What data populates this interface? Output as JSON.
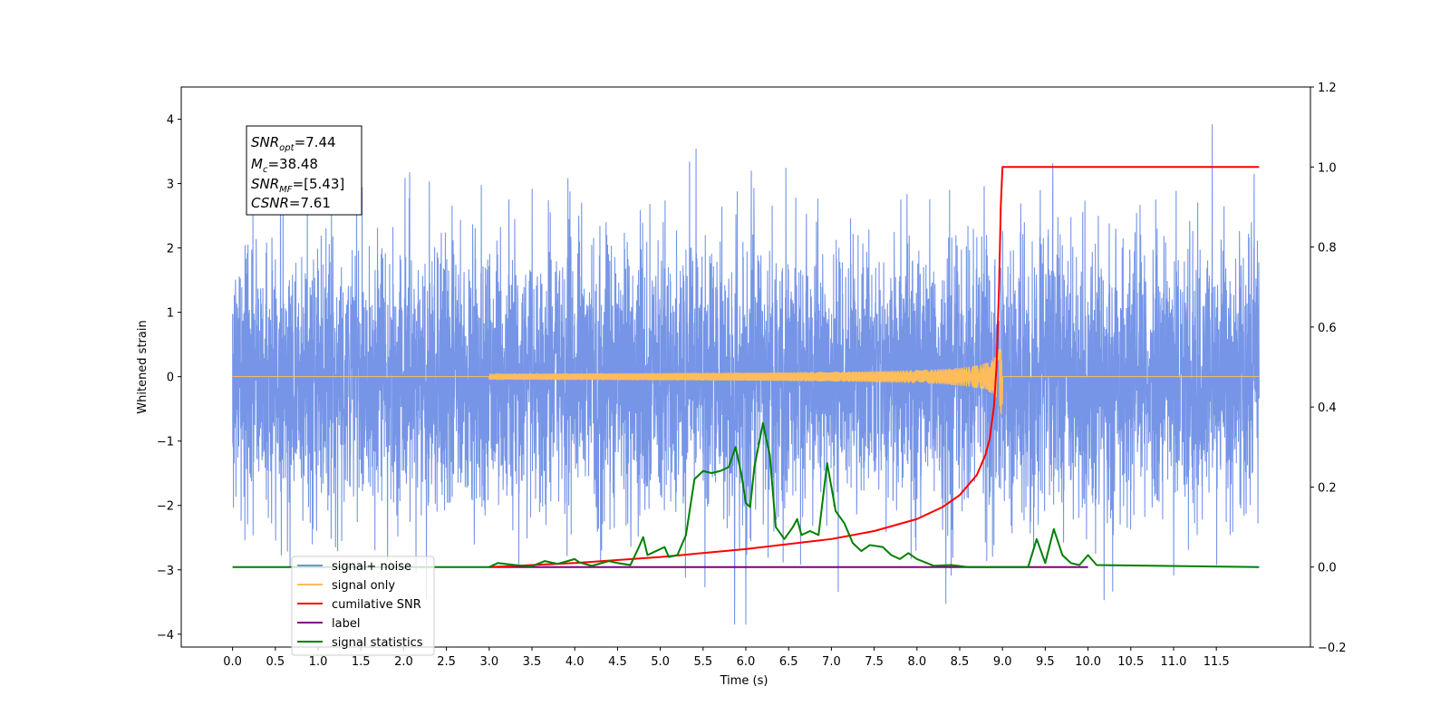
{
  "chart_data": {
    "type": "line",
    "xlabel": "Time (s)",
    "ylabel": "Whitened strain",
    "xlim": [
      -0.6,
      12.6
    ],
    "ylim": [
      -4.2,
      4.5
    ],
    "ylim_right": [
      -0.2,
      1.2
    ],
    "x_ticks": [
      "0.0",
      "0.5",
      "1.0",
      "1.5",
      "2.0",
      "2.5",
      "3.0",
      "3.5",
      "4.0",
      "4.5",
      "5.0",
      "5.5",
      "6.0",
      "6.5",
      "7.0",
      "7.5",
      "8.0",
      "8.5",
      "9.0",
      "9.5",
      "10.0",
      "10.5",
      "11.0",
      "11.5"
    ],
    "y_ticks": [
      "4",
      "3",
      "2",
      "1",
      "0",
      "−1",
      "−2",
      "−3",
      "−4"
    ],
    "y2_ticks": [
      "1.2",
      "1.0",
      "0.8",
      "0.6",
      "0.4",
      "0.2",
      "0.0",
      "−0.2"
    ],
    "annotation": {
      "snr_opt_label": "SNR",
      "snr_opt_sub": "opt",
      "snr_opt_value": "=7.44",
      "mc_label": "M",
      "mc_sub": "c",
      "mc_value": "=38.48",
      "snr_mf_label": "SNR",
      "snr_mf_sub": "MF",
      "snr_mf_value": "=[5.43]",
      "csnr_label": "CSNR",
      "csnr_value": "=7.61"
    },
    "legend": [
      "signal+ noise",
      "signal only",
      "cumilative SNR",
      "label",
      "signal statistics"
    ],
    "legend_position": "lower-left",
    "series": [
      {
        "name": "signal+ noise",
        "color": "#6f8fe6",
        "axis": "left",
        "description": "white noise about 0 spanning roughly -3.8 to 4.1 over 0 to 12 s"
      },
      {
        "name": "signal only",
        "color": "#ffbd5a",
        "axis": "left",
        "chirp_start": 3.0,
        "merger": 9.0,
        "peak_amplitude": 0.6
      },
      {
        "name": "cumilative SNR",
        "color": "#ff0000",
        "axis": "right",
        "x": [
          3.0,
          4.0,
          5.0,
          6.0,
          7.0,
          7.5,
          8.0,
          8.3,
          8.5,
          8.7,
          8.8,
          8.85,
          8.9,
          8.93,
          8.96,
          8.98,
          9.0,
          9.05,
          12.0
        ],
        "y": [
          0.0,
          0.01,
          0.025,
          0.045,
          0.07,
          0.09,
          0.12,
          0.15,
          0.18,
          0.23,
          0.28,
          0.32,
          0.4,
          0.5,
          0.7,
          0.9,
          1.0,
          1.0,
          1.0
        ]
      },
      {
        "name": "label",
        "color": "#800080",
        "axis": "right",
        "x": [
          3.0,
          10.0
        ],
        "y": [
          0.0,
          0.0
        ]
      },
      {
        "name": "signal statistics",
        "color": "#008000",
        "axis": "right",
        "x": [
          0.0,
          3.0,
          3.1,
          3.3,
          3.5,
          3.65,
          3.8,
          4.0,
          4.05,
          4.2,
          4.4,
          4.5,
          4.65,
          4.75,
          4.8,
          4.85,
          4.95,
          5.05,
          5.1,
          5.2,
          5.3,
          5.4,
          5.5,
          5.6,
          5.7,
          5.8,
          5.88,
          5.95,
          6.0,
          6.05,
          6.1,
          6.2,
          6.28,
          6.35,
          6.45,
          6.55,
          6.6,
          6.65,
          6.75,
          6.85,
          6.95,
          7.0,
          7.05,
          7.15,
          7.25,
          7.35,
          7.45,
          7.6,
          7.7,
          7.8,
          7.9,
          8.0,
          8.2,
          8.4,
          8.6,
          9.0,
          9.3,
          9.4,
          9.5,
          9.6,
          9.7,
          9.8,
          9.9,
          10.0,
          10.1,
          12.0
        ],
        "y": [
          0.0,
          0.0,
          0.01,
          0.005,
          0.002,
          0.015,
          0.008,
          0.02,
          0.012,
          0.003,
          0.015,
          0.01,
          0.005,
          0.05,
          0.075,
          0.03,
          0.04,
          0.05,
          0.025,
          0.03,
          0.08,
          0.22,
          0.24,
          0.235,
          0.24,
          0.25,
          0.3,
          0.23,
          0.16,
          0.15,
          0.25,
          0.36,
          0.28,
          0.1,
          0.07,
          0.1,
          0.12,
          0.08,
          0.09,
          0.08,
          0.26,
          0.2,
          0.14,
          0.11,
          0.06,
          0.04,
          0.055,
          0.05,
          0.03,
          0.02,
          0.035,
          0.02,
          0.003,
          0.005,
          0.0,
          0.0,
          0.0,
          0.07,
          0.01,
          0.095,
          0.03,
          0.01,
          0.005,
          0.03,
          0.005,
          0.0
        ]
      }
    ]
  }
}
